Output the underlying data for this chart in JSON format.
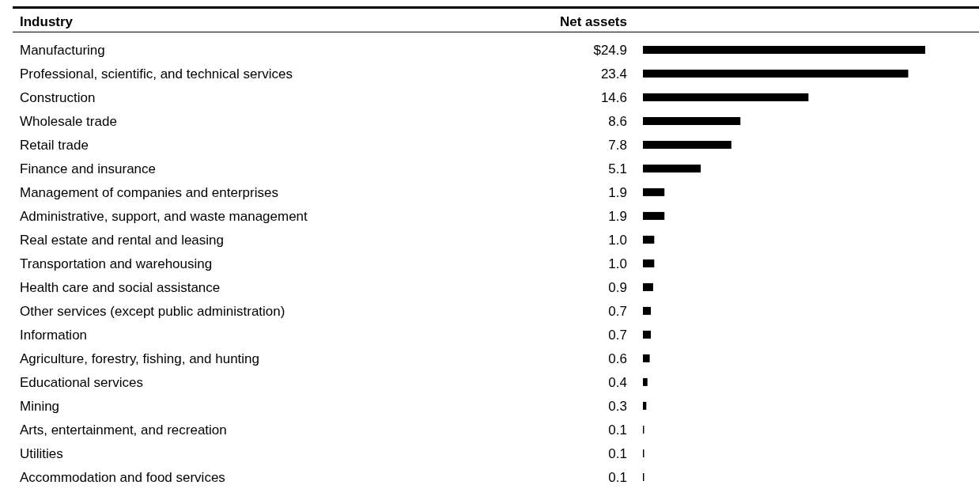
{
  "chart_data": {
    "type": "bar",
    "orientation": "horizontal",
    "ylabel": "Industry",
    "xlabel": "Net assets",
    "color": "#000000",
    "categories": [
      "Manufacturing",
      "Professional, scientific, and technical services",
      "Construction",
      "Wholesale trade",
      "Retail trade",
      "Finance and insurance",
      "Management of companies and enterprises",
      "Administrative, support, and waste management",
      "Real estate and rental and leasing",
      "Transportation and warehousing",
      "Health care and social assistance",
      "Other services (except public administration)",
      "Information",
      "Agriculture, forestry, fishing, and hunting",
      "Educational services",
      "Mining",
      "Arts, entertainment, and recreation",
      "Utilities",
      "Accommodation and food services"
    ],
    "values": [
      24.9,
      23.4,
      14.6,
      8.6,
      7.8,
      5.1,
      1.9,
      1.9,
      1.0,
      1.0,
      0.9,
      0.7,
      0.7,
      0.6,
      0.4,
      0.3,
      0.1,
      0.1,
      0.1
    ],
    "value_labels": [
      "$24.9",
      "23.4",
      "14.6",
      "8.6",
      "7.8",
      "5.1",
      "1.9",
      "1.9",
      "1.0",
      "1.0",
      "0.9",
      "0.7",
      "0.7",
      "0.6",
      "0.4",
      "0.3",
      "0.1",
      "0.1",
      "0.1"
    ]
  }
}
